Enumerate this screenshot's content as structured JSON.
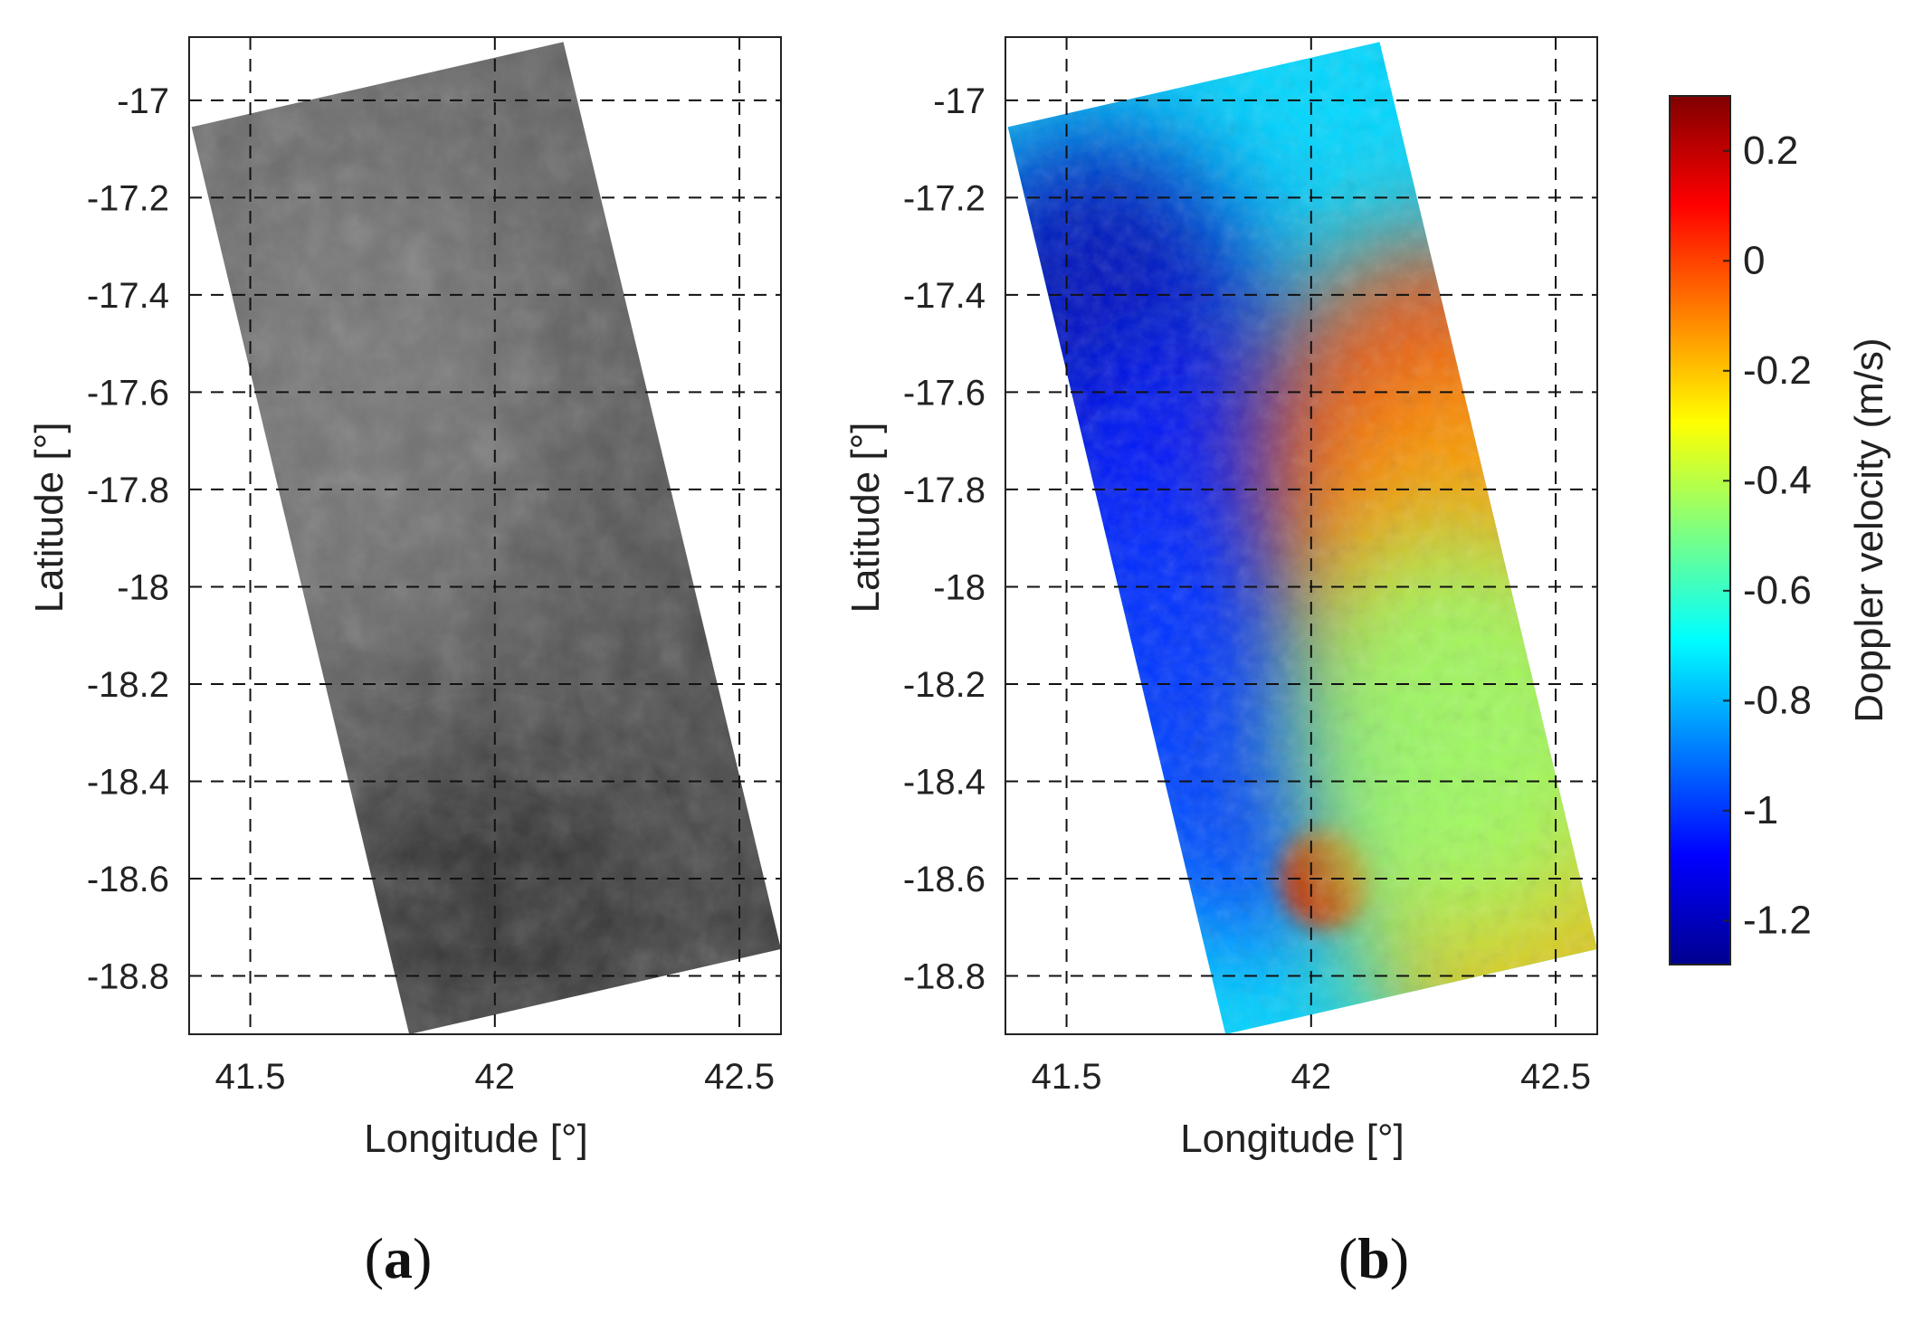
{
  "chart_data": [
    {
      "type": "heatmap",
      "panel_label_open": "(",
      "panel_label_letter": "a",
      "panel_label_close": ")",
      "xlabel": "Longitude [°]",
      "ylabel": "Latitude [°]",
      "xlim": [
        41.375,
        42.585
      ],
      "ylim": [
        -18.92,
        -16.87
      ],
      "xticks": [
        41.5,
        42,
        42.5
      ],
      "xtick_labels": [
        "41.5",
        "42",
        "42.5"
      ],
      "yticks": [
        -17,
        -17.2,
        -17.4,
        -17.6,
        -17.8,
        -18,
        -18.2,
        -18.4,
        -18.6,
        -18.8
      ],
      "ytick_labels": [
        "-17",
        "-17.2",
        "-17.4",
        "-17.6",
        "-17.8",
        "-18",
        "-18.2",
        "-18.4",
        "-18.6",
        "-18.8"
      ],
      "grid": true,
      "swath_corners_lonlat": [
        [
          41.38,
          -17.055
        ],
        [
          42.14,
          -16.88
        ],
        [
          42.585,
          -18.745
        ],
        [
          41.825,
          -18.92
        ]
      ],
      "colormap": "gray"
    },
    {
      "type": "heatmap",
      "panel_label_open": "(",
      "panel_label_letter": "b",
      "panel_label_close": ")",
      "xlabel": "Longitude [°]",
      "ylabel": "Latitude [°]",
      "xlim": [
        41.375,
        42.585
      ],
      "ylim": [
        -18.92,
        -16.87
      ],
      "xticks": [
        41.5,
        42,
        42.5
      ],
      "xtick_labels": [
        "41.5",
        "42",
        "42.5"
      ],
      "yticks": [
        -17,
        -17.2,
        -17.4,
        -17.6,
        -17.8,
        -18,
        -18.2,
        -18.4,
        -18.6,
        -18.8
      ],
      "ytick_labels": [
        "-17",
        "-17.2",
        "-17.4",
        "-17.6",
        "-17.8",
        "-18",
        "-18.2",
        "-18.4",
        "-18.6",
        "-18.8"
      ],
      "grid": true,
      "swath_corners_lonlat": [
        [
          41.38,
          -17.055
        ],
        [
          42.14,
          -16.88
        ],
        [
          42.585,
          -18.745
        ],
        [
          41.825,
          -18.92
        ]
      ],
      "colormap": "jet",
      "colorbar": {
        "label": "Doppler velocity (m/s)",
        "range": [
          -1.28,
          0.3
        ],
        "ticks": [
          0.2,
          0,
          -0.2,
          -0.4,
          -0.6,
          -0.8,
          -1,
          -1.2
        ],
        "tick_labels": [
          "0.2",
          "0",
          "-0.2",
          "-0.4",
          "-0.6",
          "-0.8",
          "-1",
          "-1.2"
        ]
      },
      "features": [
        {
          "lon": 41.55,
          "lat": -17.48,
          "value": -1.2
        },
        {
          "lon": 41.75,
          "lat": -17.9,
          "value": -1.05
        },
        {
          "lon": 41.85,
          "lat": -18.3,
          "value": -1.0
        },
        {
          "lon": 42.25,
          "lat": -17.7,
          "value": 0.0
        },
        {
          "lon": 42.35,
          "lat": -17.95,
          "value": -0.15
        },
        {
          "lon": 42.03,
          "lat": -18.6,
          "value": 0.2
        },
        {
          "lon": 42.45,
          "lat": -18.65,
          "value": -0.2
        },
        {
          "lon": 42.3,
          "lat": -18.3,
          "value": -0.45
        }
      ]
    }
  ]
}
